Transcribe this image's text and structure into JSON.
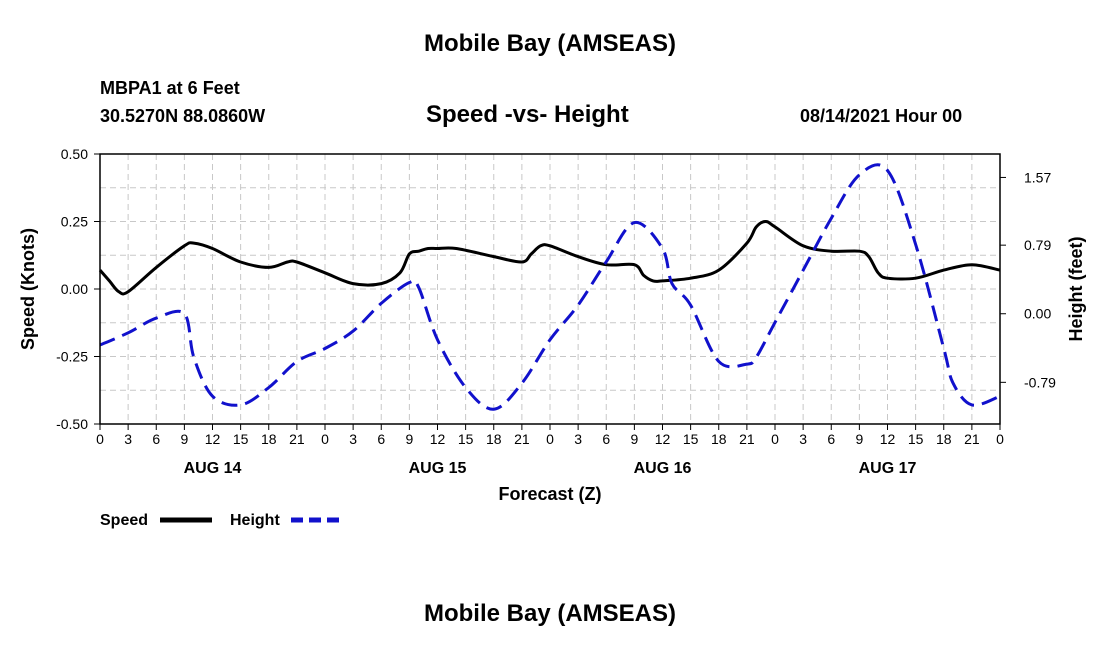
{
  "header": {
    "title": "Mobile Bay (AMSEAS)",
    "station": "MBPA1 at 6 Feet",
    "coordinates": "30.5270N  88.0860W",
    "subtitle": "Speed -vs- Height",
    "datetime": "08/14/2021 Hour 00"
  },
  "footer": {
    "title": "Mobile Bay (AMSEAS)"
  },
  "chart_data": {
    "type": "line",
    "title": "Speed -vs- Height",
    "xlabel": "Forecast (Z)",
    "ylabel": "Speed (Knots)",
    "y2label": "Height (feet)",
    "ylim": [
      -0.5,
      0.5
    ],
    "y2lim": [
      -1.27,
      1.84
    ],
    "xlim": [
      0,
      96
    ],
    "x_unit": "hours since 08/14/2021 00Z",
    "yticks": [
      "0.50",
      "0.25",
      "0.00",
      "-0.25",
      "-0.50"
    ],
    "y2ticks": [
      "1.57",
      "0.79",
      "0.00",
      "-0.79"
    ],
    "xticks": [
      "0",
      "3",
      "6",
      "9",
      "12",
      "15",
      "18",
      "21",
      "0",
      "3",
      "6",
      "9",
      "12",
      "15",
      "18",
      "21",
      "0",
      "3",
      "6",
      "9",
      "12",
      "15",
      "18",
      "21",
      "0",
      "3",
      "6",
      "9",
      "12",
      "15",
      "18",
      "21",
      "0"
    ],
    "day_labels": [
      "AUG 14",
      "AUG 15",
      "AUG 16",
      "AUG 17"
    ],
    "grid": true,
    "legend": {
      "position": "bottom-left",
      "speed_label": "Speed",
      "height_label": "Height"
    },
    "series": [
      {
        "name": "Speed",
        "axis": "left",
        "color": "#000000",
        "style": "solid",
        "x": [
          0,
          1,
          2,
          3,
          6,
          9,
          10,
          12,
          15,
          18,
          20,
          21,
          24,
          27,
          30,
          32,
          33,
          34,
          35,
          36,
          38,
          42,
          45,
          46,
          47,
          48,
          51,
          54,
          57,
          58,
          59,
          60,
          63,
          66,
          69,
          70,
          71,
          72,
          75,
          78,
          81,
          82,
          83,
          84,
          87,
          90,
          93,
          96
        ],
        "values": [
          0.07,
          0.03,
          -0.01,
          -0.01,
          0.08,
          0.16,
          0.17,
          0.15,
          0.1,
          0.08,
          0.1,
          0.1,
          0.06,
          0.02,
          0.02,
          0.06,
          0.13,
          0.14,
          0.15,
          0.15,
          0.15,
          0.12,
          0.1,
          0.13,
          0.16,
          0.16,
          0.12,
          0.09,
          0.09,
          0.05,
          0.03,
          0.03,
          0.04,
          0.07,
          0.17,
          0.23,
          0.25,
          0.23,
          0.16,
          0.14,
          0.14,
          0.12,
          0.06,
          0.04,
          0.04,
          0.07,
          0.09,
          0.07
        ]
      },
      {
        "name": "Height",
        "axis": "right",
        "color": "#1111cc",
        "style": "dashed",
        "x": [
          0,
          3,
          6,
          9,
          10,
          12,
          15,
          18,
          21,
          24,
          27,
          30,
          33,
          34,
          36,
          39,
          42,
          45,
          48,
          51,
          54,
          57,
          60,
          61,
          63,
          66,
          69,
          70,
          72,
          75,
          78,
          81,
          84,
          87,
          90,
          91,
          93,
          96
        ],
        "values": [
          -0.36,
          -0.22,
          -0.05,
          0.0,
          -0.5,
          -0.95,
          -1.05,
          -0.85,
          -0.55,
          -0.4,
          -0.2,
          0.12,
          0.36,
          0.3,
          -0.3,
          -0.85,
          -1.1,
          -0.8,
          -0.3,
          0.1,
          0.6,
          1.05,
          0.75,
          0.35,
          0.1,
          -0.55,
          -0.58,
          -0.5,
          -0.1,
          0.5,
          1.1,
          1.6,
          1.65,
          0.8,
          -0.4,
          -0.8,
          -1.05,
          -0.95
        ]
      }
    ]
  }
}
